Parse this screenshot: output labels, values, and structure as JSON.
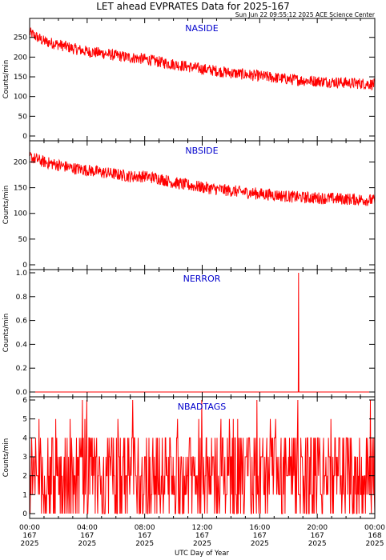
{
  "title": "LET ahead EVPRATES Data for 2025-167",
  "subtitle": "Sun Jun 22 09:55:12 2025 ACE Science Center",
  "x_axis": {
    "label": "UTC Day of Year",
    "ticks": [
      {
        "time": "00:00",
        "day": "167",
        "year": "2025"
      },
      {
        "time": "04:00",
        "day": "167",
        "year": "2025"
      },
      {
        "time": "08:00",
        "day": "167",
        "year": "2025"
      },
      {
        "time": "12:00",
        "day": "167",
        "year": "2025"
      },
      {
        "time": "16:00",
        "day": "167",
        "year": "2025"
      },
      {
        "time": "20:00",
        "day": "167",
        "year": "2025"
      },
      {
        "time": "00:00",
        "day": "168",
        "year": "2025"
      }
    ]
  },
  "colors": {
    "series": "#ff0000",
    "panel_title": "#0000cc",
    "axes": "#000000"
  },
  "chart_data": [
    {
      "type": "line",
      "title": "NASIDE",
      "ylabel": "Counts/min",
      "ylim": [
        0,
        290
      ],
      "yticks": [
        "0",
        "50",
        "100",
        "150",
        "200",
        "250"
      ],
      "ytick_values": [
        0,
        50,
        100,
        150,
        200,
        250
      ],
      "x_hours": [
        0,
        1,
        2,
        3,
        4,
        5,
        6,
        7,
        8,
        9,
        10,
        11,
        12,
        13,
        14,
        15,
        16,
        17,
        18,
        19,
        20,
        21,
        22,
        23,
        24
      ],
      "values": [
        262,
        240,
        232,
        222,
        214,
        210,
        204,
        199,
        195,
        188,
        182,
        176,
        170,
        165,
        160,
        156,
        152,
        148,
        144,
        141,
        139,
        137,
        135,
        133,
        131
      ]
    },
    {
      "type": "line",
      "title": "NBSIDE",
      "ylabel": "Counts/min",
      "ylim": [
        0,
        235
      ],
      "yticks": [
        "0",
        "50",
        "100",
        "150",
        "200"
      ],
      "ytick_values": [
        0,
        50,
        100,
        150,
        200
      ],
      "x_hours": [
        0,
        1,
        2,
        3,
        4,
        5,
        6,
        7,
        8,
        9,
        10,
        11,
        12,
        13,
        14,
        15,
        16,
        17,
        18,
        19,
        20,
        21,
        22,
        23,
        24
      ],
      "values": [
        210,
        200,
        194,
        188,
        184,
        180,
        176,
        172,
        172,
        168,
        160,
        155,
        151,
        147,
        144,
        141,
        138,
        136,
        133,
        131,
        130,
        129,
        128,
        127,
        125
      ]
    },
    {
      "type": "line",
      "title": "NERROR",
      "ylabel": "Counts/min",
      "ylim": [
        0,
        1
      ],
      "yticks": [
        "0.0",
        "0.2",
        "0.4",
        "0.6",
        "0.8",
        "1.0"
      ],
      "ytick_values": [
        0,
        0.2,
        0.4,
        0.6,
        0.8,
        1.0
      ],
      "baseline": 0,
      "spikes": [
        {
          "hour": 18.7,
          "value": 1
        }
      ]
    },
    {
      "type": "line",
      "title": "NBADTAGS",
      "ylabel": "Counts/min",
      "ylim": [
        0,
        6
      ],
      "yticks": [
        "0",
        "1",
        "2",
        "3",
        "4",
        "5",
        "6"
      ],
      "ytick_values": [
        0,
        1,
        2,
        3,
        4,
        5,
        6
      ],
      "typical_range": [
        0,
        4
      ],
      "mean": 2
    }
  ]
}
